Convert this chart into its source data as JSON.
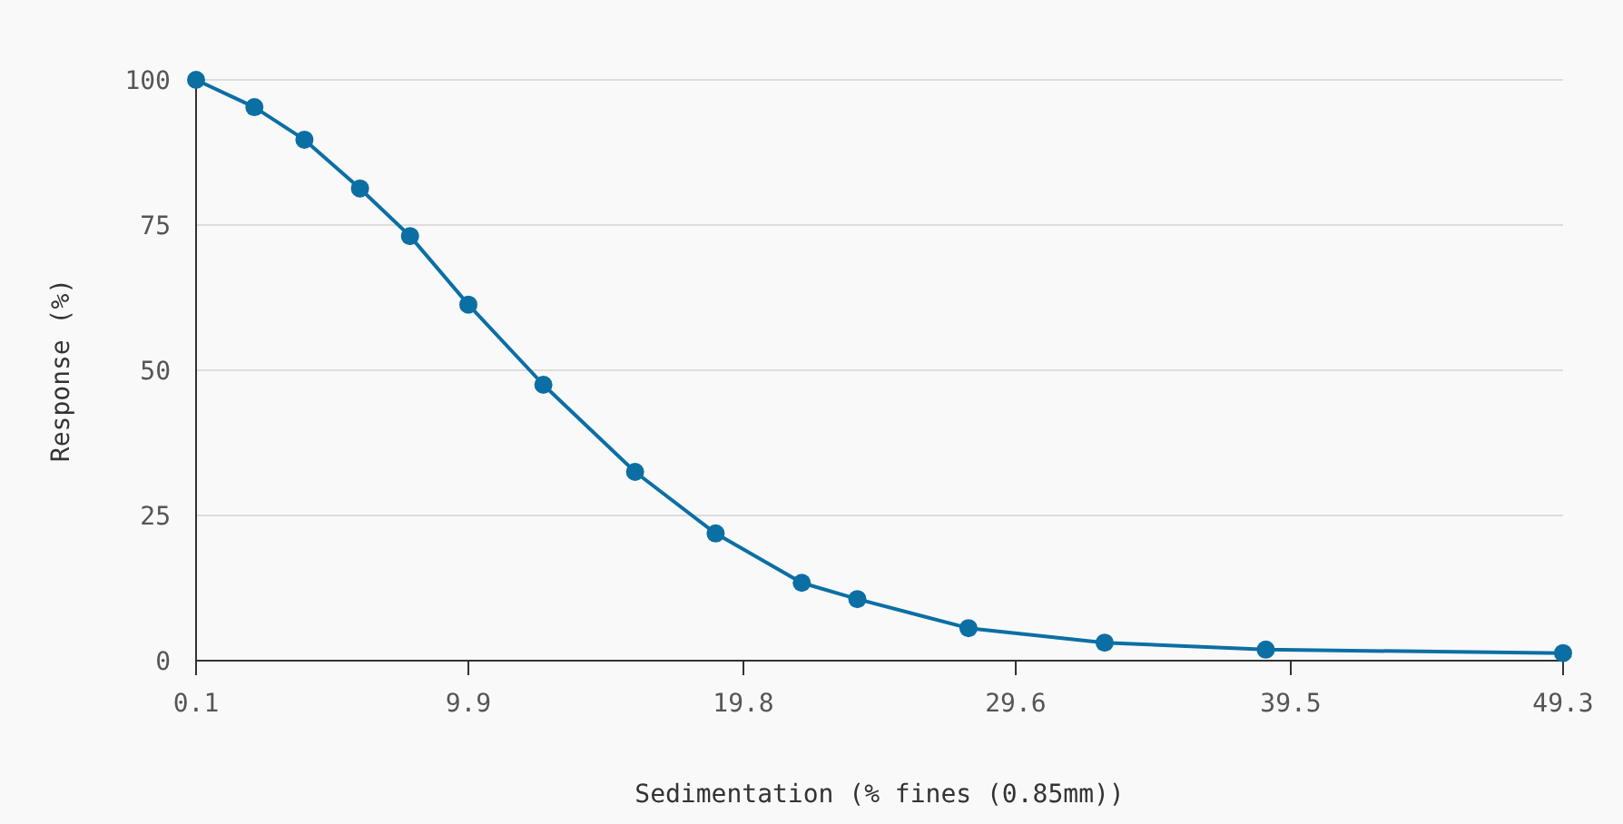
{
  "chart_data": {
    "type": "line",
    "xlabel": "Sedimentation (% fines (0.85mm))",
    "ylabel": "Response (%)",
    "x": [
      0.1,
      2.2,
      4.0,
      6.0,
      7.8,
      9.9,
      12.6,
      15.9,
      18.8,
      21.9,
      23.9,
      27.9,
      32.8,
      38.6,
      49.3
    ],
    "series": [
      {
        "color": "#0b6fa4",
        "values": [
          100,
          95.3,
          89.7,
          81.3,
          73.1,
          61.3,
          47.5,
          32.5,
          21.9,
          13.4,
          10.6,
          5.6,
          3.1,
          1.9,
          1.3
        ]
      }
    ],
    "xlim": [
      0.1,
      49.3
    ],
    "xticks": [
      0.1,
      9.9,
      19.8,
      29.6,
      39.5,
      49.3
    ],
    "ylim": [
      0,
      100
    ],
    "yticks": [
      0,
      25,
      50,
      75,
      100
    ],
    "grid": "y",
    "marker": "circle",
    "line_style": "solid"
  }
}
